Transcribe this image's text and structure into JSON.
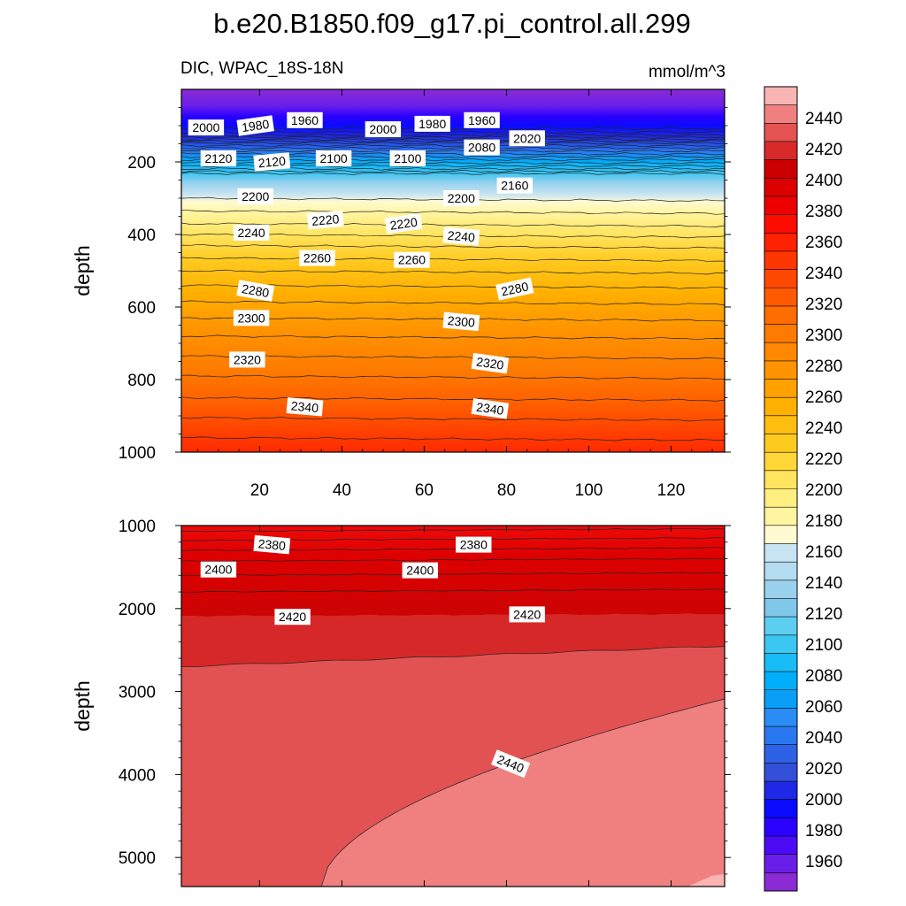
{
  "figure": {
    "title": "b.e20.B1850.f09_g17.pi_control.all.299",
    "subtitle_left": "DIC, WPAC_18S-18N",
    "subtitle_right": "mmol/m^3"
  },
  "chart_data": [
    {
      "type": "contour",
      "panel": "upper",
      "variable": "DIC",
      "units": "mmol/m^3",
      "xlabel": "",
      "ylabel": "depth",
      "xlim": [
        1,
        133
      ],
      "ylim": [
        1000,
        0
      ],
      "xticks": [
        20,
        40,
        60,
        80,
        100,
        120
      ],
      "yticks": [
        200,
        400,
        600,
        800,
        1000
      ],
      "contour_labels": [
        {
          "value": 2000,
          "x": 7,
          "depth": 105,
          "angle": 0
        },
        {
          "value": 1980,
          "x": 19,
          "depth": 100,
          "angle": 8
        },
        {
          "value": 1960,
          "x": 31,
          "depth": 85,
          "angle": 0
        },
        {
          "value": 2000,
          "x": 50,
          "depth": 110,
          "angle": 0
        },
        {
          "value": 1980,
          "x": 62,
          "depth": 95,
          "angle": 0
        },
        {
          "value": 1960,
          "x": 74,
          "depth": 85,
          "angle": 0
        },
        {
          "value": 2020,
          "x": 85,
          "depth": 135,
          "angle": 0
        },
        {
          "value": 2080,
          "x": 74,
          "depth": 160,
          "angle": 0
        },
        {
          "value": 2120,
          "x": 10,
          "depth": 190,
          "angle": 0
        },
        {
          "value": 2120,
          "x": 23,
          "depth": 200,
          "angle": 5
        },
        {
          "value": 2100,
          "x": 38,
          "depth": 190,
          "angle": 0
        },
        {
          "value": 2100,
          "x": 56,
          "depth": 190,
          "angle": 0
        },
        {
          "value": 2160,
          "x": 82,
          "depth": 265,
          "angle": 0
        },
        {
          "value": 2200,
          "x": 19,
          "depth": 295,
          "angle": 0
        },
        {
          "value": 2200,
          "x": 69,
          "depth": 300,
          "angle": 0
        },
        {
          "value": 2220,
          "x": 36,
          "depth": 360,
          "angle": 5
        },
        {
          "value": 2220,
          "x": 55,
          "depth": 370,
          "angle": 8
        },
        {
          "value": 2240,
          "x": 18,
          "depth": 395,
          "angle": 0
        },
        {
          "value": 2240,
          "x": 69,
          "depth": 405,
          "angle": -5
        },
        {
          "value": 2260,
          "x": 34,
          "depth": 465,
          "angle": 0
        },
        {
          "value": 2260,
          "x": 57,
          "depth": 470,
          "angle": 0
        },
        {
          "value": 2280,
          "x": 19,
          "depth": 555,
          "angle": -10
        },
        {
          "value": 2280,
          "x": 82,
          "depth": 550,
          "angle": 12
        },
        {
          "value": 2300,
          "x": 18,
          "depth": 630,
          "angle": 0
        },
        {
          "value": 2300,
          "x": 69,
          "depth": 640,
          "angle": -5
        },
        {
          "value": 2320,
          "x": 17,
          "depth": 745,
          "angle": 0
        },
        {
          "value": 2320,
          "x": 76,
          "depth": 755,
          "angle": -8
        },
        {
          "value": 2340,
          "x": 31,
          "depth": 875,
          "angle": -5
        },
        {
          "value": 2340,
          "x": 76,
          "depth": 880,
          "angle": -8
        }
      ]
    },
    {
      "type": "contour",
      "panel": "lower",
      "variable": "DIC",
      "units": "mmol/m^3",
      "xlabel": "",
      "ylabel": "depth",
      "xlim": [
        1,
        133
      ],
      "ylim": [
        5350,
        1000
      ],
      "yticks": [
        1000,
        2000,
        3000,
        4000,
        5000
      ],
      "contour_labels": [
        {
          "value": 2380,
          "x": 23,
          "depth": 1230,
          "angle": -5
        },
        {
          "value": 2380,
          "x": 72,
          "depth": 1230,
          "angle": 0
        },
        {
          "value": 2400,
          "x": 10,
          "depth": 1530,
          "angle": 0
        },
        {
          "value": 2400,
          "x": 59,
          "depth": 1540,
          "angle": 0
        },
        {
          "value": 2420,
          "x": 28,
          "depth": 2100,
          "angle": 0
        },
        {
          "value": 2420,
          "x": 85,
          "depth": 2070,
          "angle": 0
        },
        {
          "value": 2440,
          "x": 81,
          "depth": 3870,
          "angle": -22
        }
      ],
      "boundaries_note": "2420/2440 interface rises from ~2700 m (x=1) to ~2450 m (x=133); 2440/2460 interface rises from ~5350 m (x=35) to ~3090 m (x=133)"
    }
  ],
  "colorbar": {
    "levels": [
      1960,
      1980,
      2000,
      2020,
      2040,
      2060,
      2080,
      2100,
      2120,
      2140,
      2160,
      2180,
      2200,
      2220,
      2240,
      2260,
      2280,
      2300,
      2320,
      2340,
      2360,
      2380,
      2400,
      2420,
      2440
    ],
    "tick_labels": [
      "1960",
      "1980",
      "2000",
      "2020",
      "2040",
      "2060",
      "2080",
      "2100",
      "2120",
      "2140",
      "2160",
      "2180",
      "2200",
      "2220",
      "2240",
      "2260",
      "2280",
      "2300",
      "2320",
      "2340",
      "2360",
      "2380",
      "2400",
      "2420",
      "2440"
    ],
    "colors": [
      "#8a2bd6",
      "#6a1fe8",
      "#4b0cf5",
      "#2a00ff",
      "#0a0aff",
      "#1e28e6",
      "#3250d8",
      "#2e62e6",
      "#2a78f0",
      "#2a8cf5",
      "#0a9ff7",
      "#00aefa",
      "#18bcf6",
      "#3cc6f2",
      "#5ccff0",
      "#80c8ea",
      "#9ad2ee",
      "#b4dcf0",
      "#c8e4f2",
      "#fffad2",
      "#fff5a0",
      "#ffee80",
      "#ffe460",
      "#ffd838",
      "#ffca20",
      "#ffbe10",
      "#ffb000",
      "#ffa200",
      "#ff9400",
      "#ff8800",
      "#ff7a00",
      "#ff6c00",
      "#ff5a00",
      "#ff4800",
      "#ff3600",
      "#ff2200",
      "#ff0c00",
      "#ee0000",
      "#dd0000",
      "#cc0000",
      "#d82a2a",
      "#e45252",
      "#f08080",
      "#f9b4b4"
    ]
  }
}
